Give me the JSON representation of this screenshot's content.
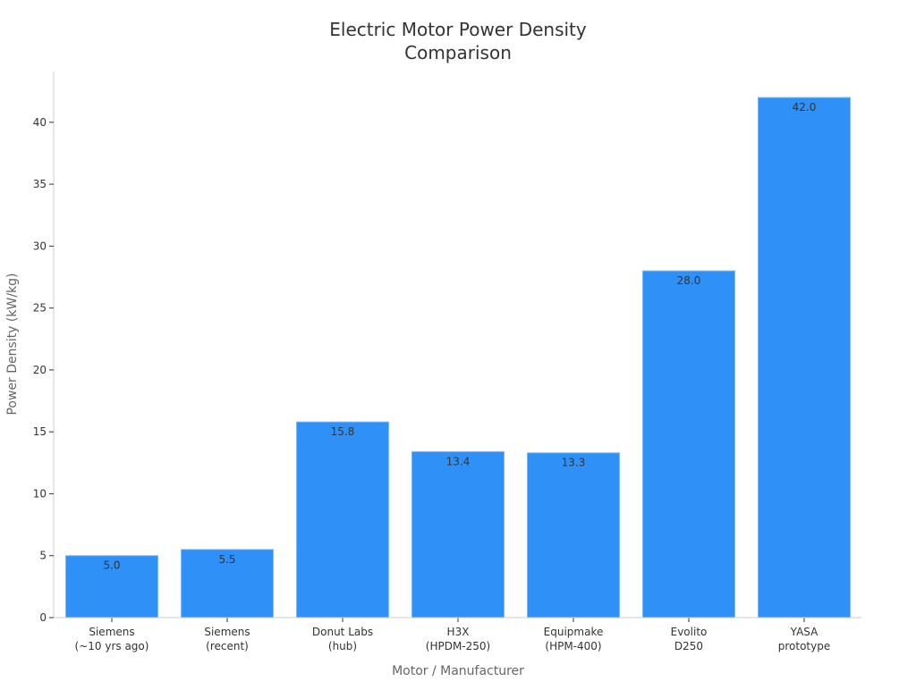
{
  "chart_data": {
    "type": "bar",
    "title": "Electric Motor Power Density\nComparison",
    "xlabel": "Motor / Manufacturer",
    "ylabel": "Power Density (kW/kg)",
    "categories": [
      "Siemens\n(~10 yrs ago)",
      "Siemens\n(recent)",
      "Donut Labs\n(hub)",
      "H3X\n(HPDM-250)",
      "Equipmake\n(HPM-400)",
      "Evolito\nD250",
      "YASA\nprototype"
    ],
    "values": [
      5.0,
      5.5,
      15.8,
      13.4,
      13.3,
      28.0,
      42.0
    ],
    "data_labels": [
      "5.0",
      "5.5",
      "15.8",
      "13.4",
      "13.3",
      "28.0",
      "42.0"
    ],
    "yticks": [
      0,
      5,
      10,
      15,
      20,
      25,
      30,
      35,
      40
    ],
    "ylim": [
      0,
      44.1
    ],
    "grid": false,
    "colors": {
      "bar": "#2f91f7",
      "bar_edge": "#7ab8fa",
      "text": "#333333",
      "axis": "#cccccc"
    }
  }
}
